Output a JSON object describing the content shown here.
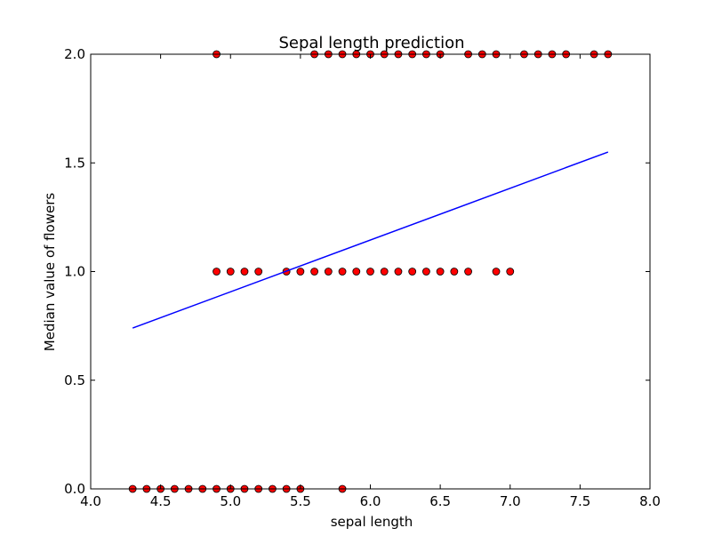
{
  "chart_data": {
    "type": "scatter",
    "title": "Sepal length prediction",
    "xlabel": "sepal length",
    "ylabel": "Median value of flowers",
    "xlim": [
      4.0,
      8.0
    ],
    "ylim": [
      0.0,
      2.0
    ],
    "xticks": [
      "4.0",
      "4.5",
      "5.0",
      "5.5",
      "6.0",
      "6.5",
      "7.0",
      "7.5",
      "8.0"
    ],
    "yticks": [
      "0.0",
      "0.5",
      "1.0",
      "1.5",
      "2.0"
    ],
    "grid": false,
    "series": [
      {
        "kind": "scatter",
        "color": "#ff0000",
        "points": [
          [
            4.3,
            0
          ],
          [
            4.4,
            0
          ],
          [
            4.5,
            0
          ],
          [
            4.6,
            0
          ],
          [
            4.7,
            0
          ],
          [
            4.8,
            0
          ],
          [
            4.9,
            0
          ],
          [
            5.0,
            0
          ],
          [
            5.1,
            0
          ],
          [
            5.2,
            0
          ],
          [
            5.3,
            0
          ],
          [
            5.4,
            0
          ],
          [
            5.5,
            0
          ],
          [
            5.8,
            0
          ],
          [
            4.9,
            1
          ],
          [
            5.0,
            1
          ],
          [
            5.1,
            1
          ],
          [
            5.2,
            1
          ],
          [
            5.4,
            1
          ],
          [
            5.5,
            1
          ],
          [
            5.6,
            1
          ],
          [
            5.7,
            1
          ],
          [
            5.8,
            1
          ],
          [
            5.9,
            1
          ],
          [
            6.0,
            1
          ],
          [
            6.1,
            1
          ],
          [
            6.2,
            1
          ],
          [
            6.3,
            1
          ],
          [
            6.4,
            1
          ],
          [
            6.5,
            1
          ],
          [
            6.6,
            1
          ],
          [
            6.7,
            1
          ],
          [
            6.9,
            1
          ],
          [
            7.0,
            1
          ],
          [
            4.9,
            2
          ],
          [
            5.6,
            2
          ],
          [
            5.7,
            2
          ],
          [
            5.8,
            2
          ],
          [
            5.9,
            2
          ],
          [
            6.0,
            2
          ],
          [
            6.1,
            2
          ],
          [
            6.2,
            2
          ],
          [
            6.3,
            2
          ],
          [
            6.4,
            2
          ],
          [
            6.5,
            2
          ],
          [
            6.7,
            2
          ],
          [
            6.8,
            2
          ],
          [
            6.9,
            2
          ],
          [
            7.1,
            2
          ],
          [
            7.2,
            2
          ],
          [
            7.3,
            2
          ],
          [
            7.4,
            2
          ],
          [
            7.6,
            2
          ],
          [
            7.7,
            2
          ]
        ]
      },
      {
        "kind": "line",
        "color": "#0000ff",
        "x": [
          4.3,
          7.7
        ],
        "y": [
          0.74,
          1.55
        ]
      }
    ]
  }
}
